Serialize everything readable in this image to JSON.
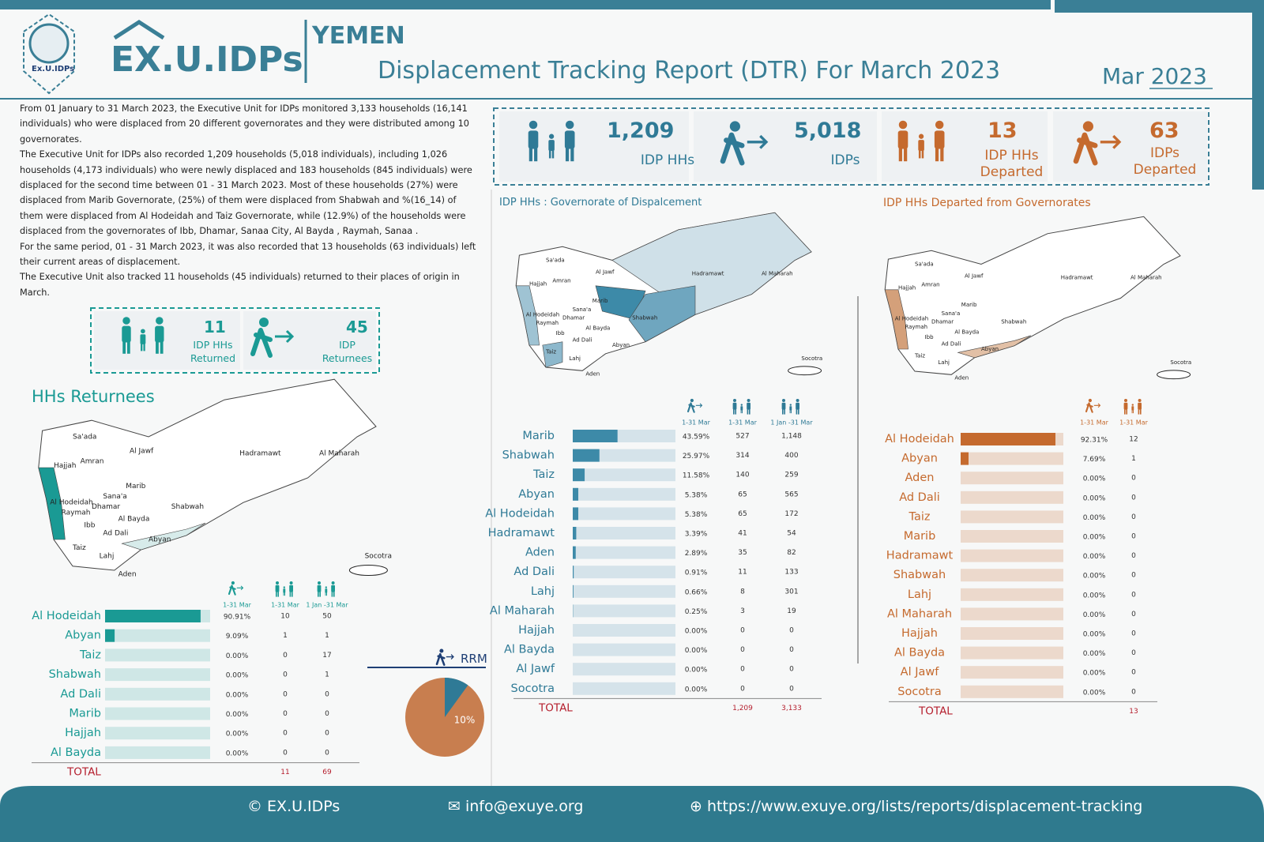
{
  "header": {
    "logo_caption": "Ex.U.IDPs",
    "brand": "EX.U.IDPs",
    "country": "YEMEN",
    "title": "Displacement Tracking Report (DTR) For March 2023",
    "month": "Mar",
    "year": "2023"
  },
  "intro": [
    "From 01 January to 31 March 2023, the Executive Unit for IDPs monitored 3,133 households (16,141 individuals) who were displaced from 20 different governorates and they were distributed among 10 governorates.",
    "The Executive Unit for IDPs also recorded 1,209 households (5,018 individuals), including 1,026 households (4,173 individuals) who were newly displaced and 183 households (845 individuals) were displaced for the second time between 01 - 31 March 2023. Most of these households (27%) were displaced from Marib Governorate, (25%) of them were displaced from Shabwah and %(16_14) of them were displaced from Al Hodeidah and Taiz Governorate, while (12.9%) of the households were displaced from the governorates of Ibb, Dhamar, Sanaa City, Al Bayda , Raymah, Sanaa .",
    "For the same period, 01 - 31 March 2023, it was also recorded that 13 households (63 individuals) left their current areas of displacement.",
    "The Executive Unit also tracked 11 households (45 individuals) returned to their places of origin in March."
  ],
  "kpis": [
    {
      "value": "1,209",
      "label": "IDP HHs"
    },
    {
      "value": "5,018",
      "label": "IDPs"
    },
    {
      "value": "13",
      "label": "IDP HHs Departed"
    },
    {
      "value": "63",
      "label": "IDPs Departed"
    }
  ],
  "return_kpis": [
    {
      "value": "11",
      "label": "IDP HHs Returned"
    },
    {
      "value": "45",
      "label": "IDP Returnees"
    }
  ],
  "map_labels": [
    "Sa'ada",
    "Al Jawf",
    "Hadramawt",
    "Al Maharah",
    "Hajjah",
    "Amran",
    "Marib",
    "Sana'a",
    "Al Hodeidah",
    "Shabwah",
    "Dhamar",
    "Raymah",
    "Al Bayda",
    "Ibb",
    "Ad Dali",
    "Abyan",
    "Taiz",
    "Lahj",
    "Aden",
    "Socotra"
  ],
  "returnees": {
    "title": "HHs Returnees",
    "columns": [
      "1-31 Mar",
      "1-31 Mar",
      "1 Jan -31 Mar"
    ],
    "rows": [
      {
        "name": "Al Hodeidah",
        "share": {
          "value": 90.91,
          "label": "90.91%"
        },
        "hh": "10",
        "total": "50"
      },
      {
        "name": "Abyan",
        "share": {
          "value": 9.09,
          "label": "9.09%"
        },
        "hh": "1",
        "total": "1"
      },
      {
        "name": "Taiz",
        "share": {
          "value": 0,
          "label": "0.00%"
        },
        "hh": "0",
        "total": "17"
      },
      {
        "name": "Shabwah",
        "share": {
          "value": 0,
          "label": "0.00%"
        },
        "hh": "0",
        "total": "1"
      },
      {
        "name": "Ad Dali",
        "share": {
          "value": 0,
          "label": "0.00%"
        },
        "hh": "0",
        "total": "0"
      },
      {
        "name": "Marib",
        "share": {
          "value": 0,
          "label": "0.00%"
        },
        "hh": "0",
        "total": "0"
      },
      {
        "name": "Hajjah",
        "share": {
          "value": 0,
          "label": "0.00%"
        },
        "hh": "0",
        "total": "0"
      },
      {
        "name": "Al Bayda",
        "share": {
          "value": 0,
          "label": "0.00%"
        },
        "hh": "0",
        "total": "0"
      }
    ],
    "total": {
      "label": "TOTAL",
      "hh": "11",
      "total": "69"
    }
  },
  "displacement": {
    "title": "IDP HHs : Governorate of Dispalcement",
    "columns": [
      "1-31 Mar",
      "1-31 Mar",
      "1 Jan -31 Mar"
    ],
    "rows": [
      {
        "name": "Marib",
        "share": {
          "value": 43.59,
          "label": "43.59%"
        },
        "hh": "527",
        "total": "1,148"
      },
      {
        "name": "Shabwah",
        "share": {
          "value": 25.97,
          "label": "25.97%"
        },
        "hh": "314",
        "total": "400"
      },
      {
        "name": "Taiz",
        "share": {
          "value": 11.58,
          "label": "11.58%"
        },
        "hh": "140",
        "total": "259"
      },
      {
        "name": "Abyan",
        "share": {
          "value": 5.38,
          "label": "5.38%"
        },
        "hh": "65",
        "total": "565"
      },
      {
        "name": "Al Hodeidah",
        "share": {
          "value": 5.38,
          "label": "5.38%"
        },
        "hh": "65",
        "total": "172"
      },
      {
        "name": "Hadramawt",
        "share": {
          "value": 3.39,
          "label": "3.39%"
        },
        "hh": "41",
        "total": "54"
      },
      {
        "name": "Aden",
        "share": {
          "value": 2.89,
          "label": "2.89%"
        },
        "hh": "35",
        "total": "82"
      },
      {
        "name": "Ad Dali",
        "share": {
          "value": 0.91,
          "label": "0.91%"
        },
        "hh": "11",
        "total": "133"
      },
      {
        "name": "Lahj",
        "share": {
          "value": 0.66,
          "label": "0.66%"
        },
        "hh": "8",
        "total": "301"
      },
      {
        "name": "Al Maharah",
        "share": {
          "value": 0.25,
          "label": "0.25%"
        },
        "hh": "3",
        "total": "19"
      },
      {
        "name": "Hajjah",
        "share": {
          "value": 0,
          "label": "0.00%"
        },
        "hh": "0",
        "total": "0"
      },
      {
        "name": "Al Bayda",
        "share": {
          "value": 0,
          "label": "0.00%"
        },
        "hh": "0",
        "total": "0"
      },
      {
        "name": "Al Jawf",
        "share": {
          "value": 0,
          "label": "0.00%"
        },
        "hh": "0",
        "total": "0"
      },
      {
        "name": "Socotra",
        "share": {
          "value": 0,
          "label": "0.00%"
        },
        "hh": "0",
        "total": "0"
      }
    ],
    "total": {
      "label": "TOTAL",
      "hh": "1,209",
      "total": "3,133"
    }
  },
  "departed": {
    "title": "IDP HHs Departed from Governorates",
    "columns": [
      "1-31 Mar",
      "1-31 Mar"
    ],
    "rows": [
      {
        "name": "Al Hodeidah",
        "share": {
          "value": 92.31,
          "label": "92.31%"
        },
        "hh": "12"
      },
      {
        "name": "Abyan",
        "share": {
          "value": 7.69,
          "label": "7.69%"
        },
        "hh": "1"
      },
      {
        "name": "Aden",
        "share": {
          "value": 0,
          "label": "0.00%"
        },
        "hh": "0"
      },
      {
        "name": "Ad Dali",
        "share": {
          "value": 0,
          "label": "0.00%"
        },
        "hh": "0"
      },
      {
        "name": "Taiz",
        "share": {
          "value": 0,
          "label": "0.00%"
        },
        "hh": "0"
      },
      {
        "name": "Marib",
        "share": {
          "value": 0,
          "label": "0.00%"
        },
        "hh": "0"
      },
      {
        "name": "Hadramawt",
        "share": {
          "value": 0,
          "label": "0.00%"
        },
        "hh": "0"
      },
      {
        "name": "Shabwah",
        "share": {
          "value": 0,
          "label": "0.00%"
        },
        "hh": "0"
      },
      {
        "name": "Lahj",
        "share": {
          "value": 0,
          "label": "0.00%"
        },
        "hh": "0"
      },
      {
        "name": "Al Maharah",
        "share": {
          "value": 0,
          "label": "0.00%"
        },
        "hh": "0"
      },
      {
        "name": "Hajjah",
        "share": {
          "value": 0,
          "label": "0.00%"
        },
        "hh": "0"
      },
      {
        "name": "Al Bayda",
        "share": {
          "value": 0,
          "label": "0.00%"
        },
        "hh": "0"
      },
      {
        "name": "Al Jawf",
        "share": {
          "value": 0,
          "label": "0.00%"
        },
        "hh": "0"
      },
      {
        "name": "Socotra",
        "share": {
          "value": 0,
          "label": "0.00%"
        },
        "hh": "0"
      }
    ],
    "total": {
      "label": "TOTAL",
      "hh": "13"
    }
  },
  "rrm": {
    "label": "RRM",
    "share": {
      "value": 10,
      "label": "10%"
    }
  },
  "footer": {
    "social": "EX.U.IDPs",
    "email": "info@exuye.org",
    "url": "https://www.exuye.org/lists/reports/displacement-tracking"
  }
}
